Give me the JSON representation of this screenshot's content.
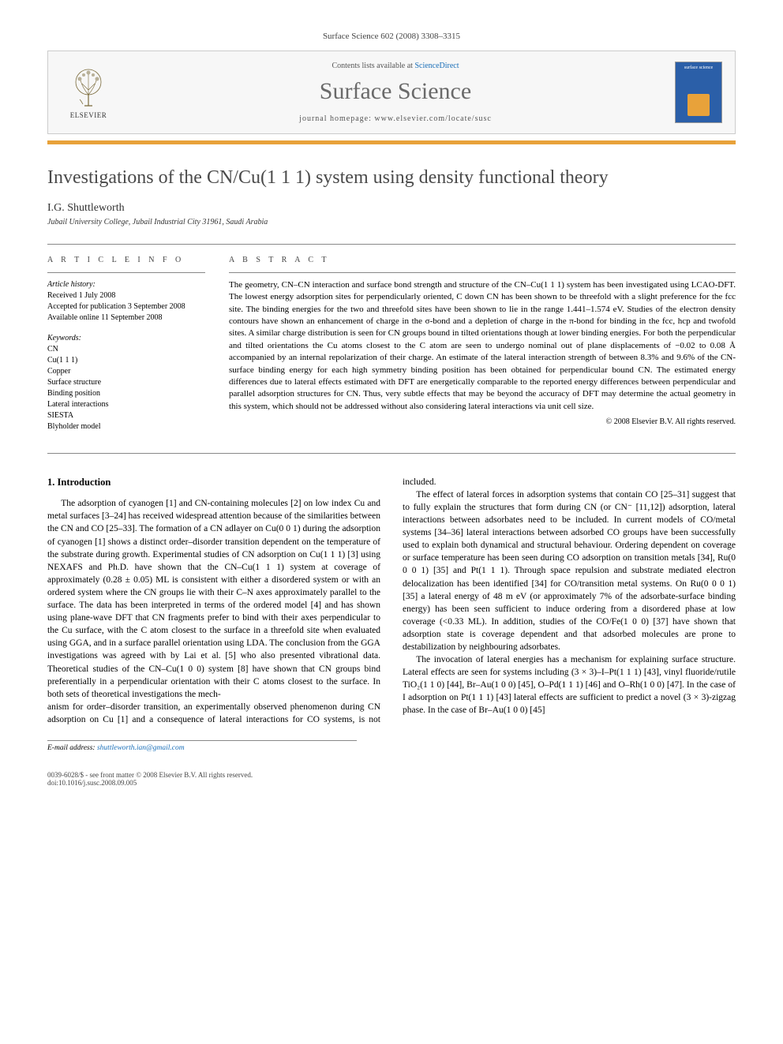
{
  "header": {
    "citation": "Surface Science 602 (2008) 3308–3315",
    "contents_prefix": "Contents lists available at ",
    "contents_link": "ScienceDirect",
    "journal_name": "Surface Science",
    "homepage_prefix": "journal homepage: ",
    "homepage_url": "www.elsevier.com/locate/susc",
    "publisher": "ELSEVIER",
    "cover_label": "surface science"
  },
  "colors": {
    "accent_orange": "#e8a23a",
    "link_blue": "#1a6fb8",
    "cover_blue": "#2b5fa8",
    "title_gray": "#4a4a4a",
    "journal_gray": "#6a6a6a"
  },
  "article": {
    "title": "Investigations of the CN/Cu(1 1 1) system using density functional theory",
    "author": "I.G. Shuttleworth",
    "affiliation": "Jubail University College, Jubail Industrial City 31961, Saudi Arabia"
  },
  "info": {
    "heading": "A R T I C L E   I N F O",
    "history_label": "Article history:",
    "received": "Received 1 July 2008",
    "accepted": "Accepted for publication 3 September 2008",
    "online": "Available online 11 September 2008",
    "keywords_label": "Keywords:",
    "keywords": [
      "CN",
      "Cu(1 1 1)",
      "Copper",
      "Surface structure",
      "Binding position",
      "Lateral interactions",
      "SIESTA",
      "Blyholder model"
    ]
  },
  "abstract": {
    "heading": "A B S T R A C T",
    "text": "The geometry, CN–CN interaction and surface bond strength and structure of the CN–Cu(1 1 1) system has been investigated using LCAO-DFT. The lowest energy adsorption sites for perpendicularly oriented, C down CN has been shown to be threefold with a slight preference for the fcc site. The binding energies for the two and threefold sites have been shown to lie in the range 1.441–1.574 eV. Studies of the electron density contours have shown an enhancement of charge in the σ-bond and a depletion of charge in the π-bond for binding in the fcc, hcp and twofold sites. A similar charge distribution is seen for CN groups bound in tilted orientations though at lower binding energies. For both the perpendicular and tilted orientations the Cu atoms closest to the C atom are seen to undergo nominal out of plane displacements of −0.02 to 0.08 Å accompanied by an internal repolarization of their charge. An estimate of the lateral interaction strength of between 8.3% and 9.6% of the CN-surface binding energy for each high symmetry binding position has been obtained for perpendicular bound CN. The estimated energy differences due to lateral effects estimated with DFT are energetically comparable to the reported energy differences between perpendicular and parallel adsorption structures for CN. Thus, very subtle effects that may be beyond the accuracy of DFT may determine the actual geometry in this system, which should not be addressed without also considering lateral interactions via unit cell size.",
    "copyright": "© 2008 Elsevier B.V. All rights reserved."
  },
  "body": {
    "section_heading": "1. Introduction",
    "p1": "The adsorption of cyanogen [1] and CN-containing molecules [2] on low index Cu and metal surfaces [3–24] has received widespread attention because of the similarities between the CN and CO [25–33]. The formation of a CN adlayer on Cu(0 0 1) during the adsorption of cyanogen [1] shows a distinct order–disorder transition dependent on the temperature of the substrate during growth. Experimental studies of CN adsorption on Cu(1 1 1) [3] using NEXAFS and Ph.D. have shown that the CN–Cu(1 1 1) system at coverage of approximately (0.28 ± 0.05) ML is consistent with either a disordered system or with an ordered system where the CN groups lie with their C–N axes approximately parallel to the surface. The data has been interpreted in terms of the ordered model [4] and has shown using plane-wave DFT that CN fragments prefer to bind with their axes perpendicular to the Cu surface, with the C atom closest to the surface in a threefold site when evaluated using GGA, and in a surface parallel orientation using LDA. The conclusion from the GGA investigations was agreed with by Lai et al. [5] who also presented vibrational data. Theoretical studies of the CN–Cu(1 0 0) system [8] have shown that CN groups bind preferentially in a perpendicular orientation with their C atoms closest to the surface. In both sets of theoretical investigations the mech-",
    "p2": "anism for order–disorder transition, an experimentally observed phenomenon during CN adsorption on Cu [1] and a consequence of lateral interactions for CO systems, is not included.",
    "p3": "The effect of lateral forces in adsorption systems that contain CO [25–31] suggest that to fully explain the structures that form during CN (or CN⁻ [11,12]) adsorption, lateral interactions between adsorbates need to be included. In current models of CO/metal systems [34–36] lateral interactions between adsorbed CO groups have been successfully used to explain both dynamical and structural behaviour. Ordering dependent on coverage or surface temperature has been seen during CO adsorption on transition metals [34], Ru(0 0 0 1) [35] and Pt(1 1 1). Through space repulsion and substrate mediated electron delocalization has been identified [34] for CO/transition metal systems. On Ru(0 0 0 1) [35] a lateral energy of 48 m eV (or approximately 7% of the adsorbate-surface binding energy) has been seen sufficient to induce ordering from a disordered phase at low coverage (<0.33 ML). In addition, studies of the CO/Fe(1 0 0) [37] have shown that adsorption state is coverage dependent and that adsorbed molecules are prone to destabilization by neighbouring adsorbates.",
    "p4": "The invocation of lateral energies has a mechanism for explaining surface structure. Lateral effects are seen for systems including (3 × 3)–I–Pt(1 1 1) [43], vinyl fluoride/rutile TiO₂(1 1 0) [44], Br–Au(1 0 0) [45], O–Pd(1 1 1) [46] and O–Rh(1 0 0) [47]. In the case of I adsorption on Pt(1 1 1) [43] lateral effects are sufficient to predict a novel (3 × 3)-zigzag phase. In the case of Br–Au(1 0 0) [45]"
  },
  "footer": {
    "email_label": "E-mail address: ",
    "email": "shuttleworth.ian@gmail.com",
    "issn_line": "0039-6028/$ - see front matter © 2008 Elsevier B.V. All rights reserved.",
    "doi": "doi:10.1016/j.susc.2008.09.005"
  }
}
